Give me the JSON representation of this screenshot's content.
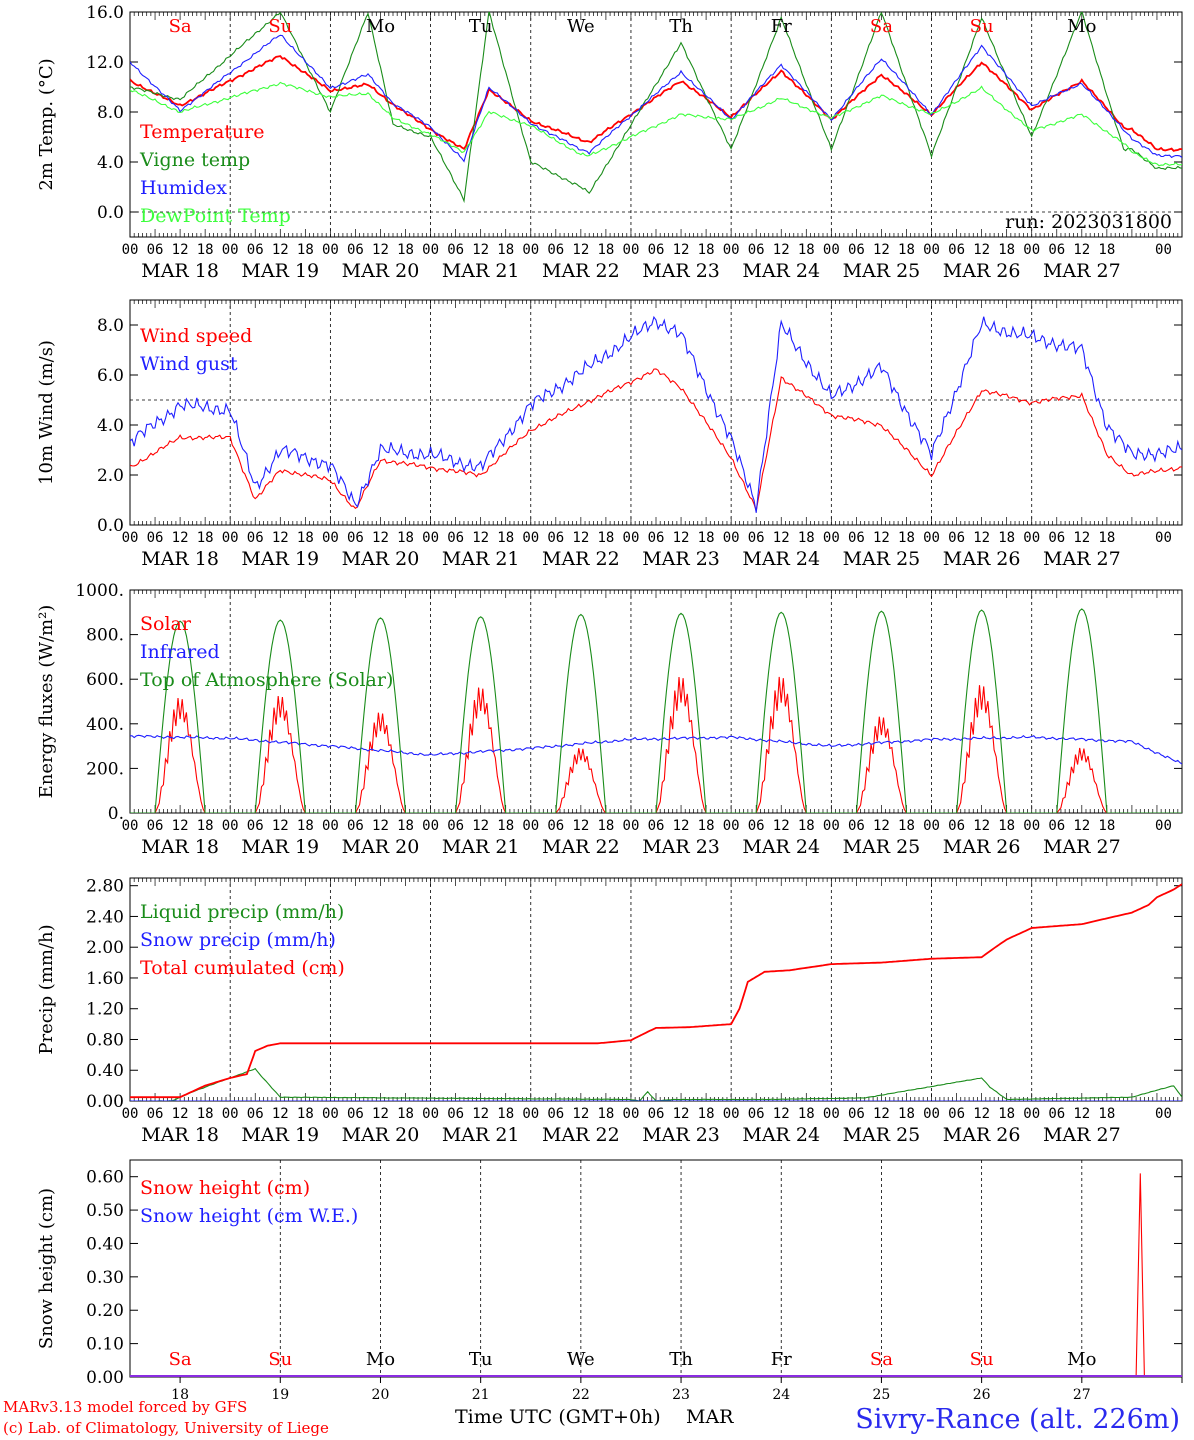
{
  "days": [
    "Sa",
    "Su",
    "Mo",
    "Tu",
    "We",
    "Th",
    "Fr",
    "Sa",
    "Su",
    "Mo"
  ],
  "weekend_days": [
    "Sa",
    "Su"
  ],
  "dates": [
    "MAR 18",
    "MAR 19",
    "MAR 20",
    "MAR 21",
    "MAR 22",
    "MAR 23",
    "MAR 24",
    "MAR 25",
    "MAR 26",
    "MAR 27"
  ],
  "hour_labels": [
    "00",
    "06",
    "12",
    "18"
  ],
  "hour_end_label": "00",
  "bottom_day_numbers": [
    "18",
    "19",
    "20",
    "21",
    "22",
    "23",
    "24",
    "25",
    "26",
    "27"
  ],
  "colors": {
    "red": "#ff0000",
    "green": "#1a8c1a",
    "blue": "#1f1fff",
    "lightgreen": "#3cff3c",
    "navy": "#2a2aee"
  },
  "footer": {
    "model": "MARv3.13 model forced by GFS",
    "copyright": "(c) Lab. of Climatology, University of Liege",
    "axis_title": "Time UTC (GMT+0h)",
    "month": "MAR",
    "station": "Sivry-Rance (alt. 226m)"
  },
  "chart_data": [
    {
      "id": "temp",
      "type": "line",
      "ylabel": "2m Temp. (°C)",
      "ylim": [
        -2.0,
        16.0
      ],
      "yticks": [
        "0.0",
        "4.0",
        "8.0",
        "12.0",
        "16.0"
      ],
      "run_label": "run: 2023031800",
      "legend_placement": "left",
      "series": [
        {
          "name": "Temperature",
          "color": "#ff0000",
          "x_hours": [
            0,
            12,
            36,
            48,
            57,
            63,
            72,
            80,
            86,
            96,
            108,
            110,
            132,
            144,
            156,
            168,
            180,
            192,
            204,
            216,
            228,
            238,
            240,
            246
          ],
          "values": [
            10.5,
            8.5,
            12.5,
            9.7,
            10.2,
            8.6,
            6.6,
            5,
            9.8,
            7.3,
            5.8,
            5.6,
            10.5,
            7.6,
            11.3,
            7.4,
            11,
            7.8,
            12.0,
            8.2,
            10.5,
            6.8,
            6.6,
            5
          ]
        },
        {
          "name": "Vigne temp",
          "color": "#1a8c1a",
          "x_hours": [
            0,
            12,
            36,
            48,
            57,
            63,
            72,
            80,
            86,
            96,
            108,
            110,
            132,
            144,
            156,
            168,
            180,
            192,
            204,
            216,
            228,
            238,
            240,
            246
          ],
          "values": [
            10.0,
            9,
            16,
            8,
            16,
            7,
            6,
            1,
            16,
            4,
            2,
            1.5,
            13.5,
            5,
            15.5,
            5,
            16,
            4.5,
            15.5,
            6,
            16,
            5,
            5,
            3.5
          ]
        },
        {
          "name": "Humidex",
          "color": "#1f1fff",
          "x_hours": [
            0,
            12,
            36,
            48,
            57,
            63,
            72,
            80,
            86,
            96,
            108,
            110,
            132,
            144,
            156,
            168,
            180,
            192,
            204,
            216,
            228,
            238,
            240,
            246
          ],
          "values": [
            12,
            8.1,
            14.2,
            9.9,
            11,
            8.7,
            6.8,
            4.1,
            10,
            7.1,
            5,
            4.8,
            11.2,
            7.4,
            11.8,
            7.4,
            12.3,
            7.8,
            13.3,
            8.5,
            10.3,
            6.6,
            5.9,
            4.5
          ]
        },
        {
          "name": "DewPoint Temp",
          "color": "#3cff3c",
          "x_hours": [
            0,
            12,
            36,
            48,
            57,
            63,
            72,
            80,
            86,
            96,
            108,
            110,
            132,
            144,
            156,
            168,
            180,
            192,
            204,
            216,
            228,
            238,
            240,
            246
          ],
          "values": [
            9.8,
            8,
            10.3,
            9.2,
            9.5,
            7.5,
            6.2,
            4.8,
            8,
            6.9,
            4.6,
            4.5,
            7.8,
            7.4,
            9.1,
            7.5,
            9.3,
            7.8,
            9.9,
            6.5,
            7.8,
            5.5,
            4.8,
            3.8
          ]
        }
      ]
    },
    {
      "id": "wind",
      "type": "line",
      "ylabel": "10m Wind (m/s)",
      "ylim": [
        0.0,
        9.0
      ],
      "yticks": [
        "0.0",
        "2.0",
        "4.0",
        "6.0",
        "8.0"
      ],
      "legend_placement": "left",
      "series": [
        {
          "name": "Wind speed",
          "color": "#ff0000",
          "x_hours": [
            0,
            12,
            24,
            30,
            36,
            48,
            54,
            60,
            72,
            84,
            96,
            108,
            126,
            132,
            144,
            150,
            156,
            168,
            180,
            192,
            204,
            216,
            228,
            234,
            240,
            252
          ],
          "values": [
            2.3,
            3.5,
            3.5,
            1.0,
            2.2,
            1.8,
            0.6,
            2.6,
            2.3,
            2.0,
            3.8,
            4.8,
            6.2,
            5.5,
            2.7,
            0.6,
            5.9,
            4.4,
            4.0,
            2.0,
            5.4,
            4.9,
            5.2,
            2.8,
            2.0,
            2.3
          ]
        },
        {
          "name": "Wind gust",
          "color": "#1f1fff",
          "x_hours": [
            0,
            12,
            24,
            30,
            36,
            48,
            54,
            60,
            72,
            84,
            96,
            108,
            126,
            132,
            144,
            150,
            156,
            168,
            180,
            192,
            204,
            216,
            228,
            234,
            240,
            252
          ],
          "values": [
            3.3,
            4.8,
            4.6,
            1.5,
            3.0,
            2.4,
            0.8,
            3.0,
            2.8,
            2.3,
            4.8,
            6.1,
            8.2,
            7.6,
            3.4,
            0.8,
            8.0,
            5.1,
            6.3,
            2.8,
            8.0,
            7.5,
            7.0,
            4.0,
            2.8,
            3.0
          ]
        }
      ]
    },
    {
      "id": "energy",
      "type": "line",
      "ylabel": "Energy fluxes (W/m²)",
      "ylim": [
        0,
        1000
      ],
      "yticks": [
        "0.",
        "200.",
        "400.",
        "600.",
        "800.",
        "1000."
      ],
      "legend_placement": "left",
      "series": [
        {
          "name": "Solar",
          "color": "#ff0000",
          "daily_peak": [
            550,
            560,
            480,
            600,
            310,
            650,
            650,
            460,
            610,
            310
          ]
        },
        {
          "name": "Infrared",
          "color": "#1f1fff",
          "x_hours": [
            0,
            24,
            48,
            72,
            96,
            120,
            144,
            168,
            192,
            216,
            240,
            252
          ],
          "values": [
            345,
            335,
            300,
            260,
            290,
            330,
            340,
            300,
            330,
            340,
            320,
            220
          ]
        },
        {
          "name": "Top of Atmosphere (Solar)",
          "color": "#1a8c1a",
          "daily_peak": [
            860,
            865,
            875,
            880,
            890,
            895,
            900,
            905,
            910,
            915
          ]
        }
      ]
    },
    {
      "id": "precip",
      "type": "line",
      "ylabel": "Precip (mm/h)",
      "ylim": [
        0.0,
        2.9
      ],
      "yticks": [
        "0.00",
        "0.40",
        "0.80",
        "1.20",
        "1.60",
        "2.00",
        "2.40",
        "2.80"
      ],
      "legend_placement": "left",
      "series": [
        {
          "name": "Liquid precip (mm/h)",
          "color": "#1a8c1a",
          "x_hours": [
            0,
            10,
            15,
            30,
            31,
            36,
            120,
            122,
            124,
            126,
            130,
            152,
            176,
            204,
            206,
            210,
            240,
            250,
            252
          ],
          "values": [
            0,
            0,
            0.12,
            0.42,
            0.35,
            0.05,
            0.02,
            0,
            0.12,
            0,
            0.02,
            0.02,
            0.04,
            0.3,
            0.18,
            0.02,
            0.05,
            0.2,
            0.05
          ]
        },
        {
          "name": "Snow precip (mm/h)",
          "color": "#1f1fff",
          "x_hours": [
            0,
            252
          ],
          "values": [
            0,
            0
          ]
        },
        {
          "name": "Total cumulated (cm)",
          "color": "#ff0000",
          "x_hours": [
            0,
            12,
            18,
            24,
            28,
            30,
            33,
            36,
            48,
            96,
            112,
            120,
            124,
            126,
            134,
            144,
            146,
            148,
            152,
            158,
            168,
            180,
            192,
            204,
            206,
            210,
            216,
            228,
            240,
            244,
            246,
            250,
            252
          ],
          "values": [
            0.05,
            0.05,
            0.2,
            0.3,
            0.35,
            0.65,
            0.72,
            0.75,
            0.75,
            0.75,
            0.75,
            0.79,
            0.9,
            0.95,
            0.96,
            1.0,
            1.2,
            1.55,
            1.68,
            1.7,
            1.78,
            1.8,
            1.85,
            1.87,
            1.95,
            2.1,
            2.25,
            2.3,
            2.45,
            2.55,
            2.65,
            2.75,
            2.82
          ]
        }
      ]
    },
    {
      "id": "snow",
      "type": "line",
      "ylabel": "Snow height (cm)",
      "ylim": [
        0.0,
        0.65
      ],
      "yticks": [
        "0.00",
        "0.10",
        "0.20",
        "0.30",
        "0.40",
        "0.50",
        "0.60"
      ],
      "legend_placement": "left",
      "series": [
        {
          "name": "Snow height (cm)",
          "color": "#ff0000",
          "x_hours": [
            0,
            241,
            242,
            243,
            244,
            252
          ],
          "values": [
            0,
            0,
            0.61,
            0.0,
            0,
            0
          ]
        },
        {
          "name": "Snow height (cm W.E.)",
          "color": "#1f1fff",
          "x_hours": [
            0,
            252
          ],
          "values": [
            0,
            0
          ]
        }
      ]
    }
  ]
}
